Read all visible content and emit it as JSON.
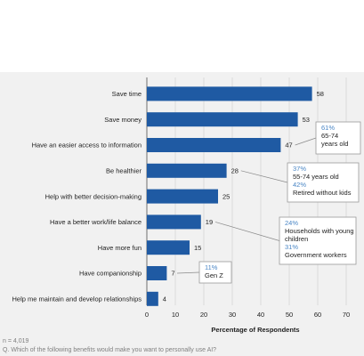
{
  "chart_data": {
    "type": "bar",
    "orientation": "horizontal",
    "categories": [
      "Save time",
      "Save money",
      "Have an easier access to information",
      "Be healthier",
      "Help with better decision-making",
      "Have a better work/life balance",
      "Have more fun",
      "Have companionship",
      "Help me maintain and develop relationships"
    ],
    "values": [
      58,
      53,
      47,
      28,
      25,
      19,
      15,
      7,
      4
    ],
    "xlabel": "Percentage of Respondents",
    "xlim": [
      0,
      70
    ],
    "xticks": [
      0,
      10,
      20,
      30,
      40,
      50,
      60,
      70
    ],
    "grid": true,
    "bar_color": "#1f5aa3",
    "annotations": [
      {
        "category": "Have an easier access to information",
        "lines": [
          {
            "pct": "61%",
            "text": "65-74 years old"
          }
        ]
      },
      {
        "category": "Be healthier",
        "lines": [
          {
            "pct": "37%",
            "text": "55-74 years old"
          },
          {
            "pct": "42%",
            "text": "Retired without kids"
          }
        ]
      },
      {
        "category": "Have a better work/life balance",
        "lines": [
          {
            "pct": "24%",
            "text": "Households with young children"
          },
          {
            "pct": "31%",
            "text": "Government workers"
          }
        ]
      },
      {
        "category": "Have companionship",
        "lines": [
          {
            "pct": "11%",
            "text": "Gen Z"
          }
        ]
      }
    ],
    "footer": {
      "sample": "n = 4,019",
      "question": "Q. Which of the following benefits would make you want to personally use AI?"
    }
  }
}
